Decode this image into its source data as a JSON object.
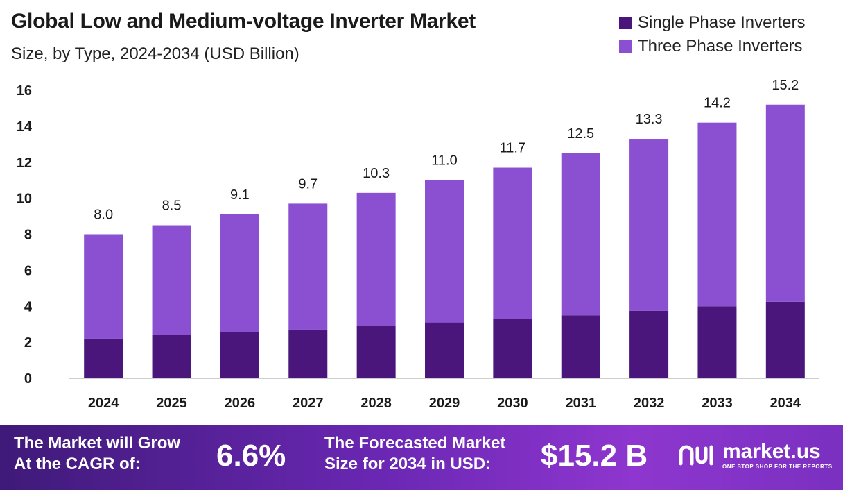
{
  "header": {
    "title": "Global Low and Medium-voltage Inverter Market",
    "subtitle": "Size, by Type, 2024-2034 (USD Billion)"
  },
  "legend": [
    {
      "label": "Single Phase Inverters",
      "color": "#4a167c"
    },
    {
      "label": "Three Phase Inverters",
      "color": "#8b4fd2"
    }
  ],
  "chart_data": {
    "type": "bar",
    "stacked": true,
    "categories": [
      "2024",
      "2025",
      "2026",
      "2027",
      "2028",
      "2029",
      "2030",
      "2031",
      "2032",
      "2033",
      "2034"
    ],
    "series": [
      {
        "name": "Single Phase Inverters",
        "color": "#4a167c",
        "values": [
          2.2,
          2.4,
          2.55,
          2.7,
          2.9,
          3.1,
          3.3,
          3.5,
          3.75,
          4.0,
          4.25
        ]
      },
      {
        "name": "Three Phase Inverters",
        "color": "#8b4fd2",
        "values": [
          5.8,
          6.1,
          6.55,
          7.0,
          7.4,
          7.9,
          8.4,
          9.0,
          9.55,
          10.2,
          10.95
        ]
      }
    ],
    "totals": [
      "8.0",
      "8.5",
      "9.1",
      "9.7",
      "10.3",
      "11.0",
      "11.7",
      "12.5",
      "13.3",
      "14.2",
      "15.2"
    ],
    "yticks": [
      0,
      2,
      4,
      6,
      8,
      10,
      12,
      14,
      16
    ],
    "ylim": [
      0,
      16
    ],
    "grid": false,
    "legend_position": "top-right"
  },
  "footer": {
    "cagr_line1": "The Market will Grow",
    "cagr_line2": "At the CAGR of:",
    "cagr_value": "6.6%",
    "forecast_line1": "The Forecasted Market",
    "forecast_line2": "Size for 2034 in USD:",
    "forecast_value": "$15.2 B",
    "brand": "market.us",
    "tagline": "ONE STOP SHOP FOR THE REPORTS"
  }
}
